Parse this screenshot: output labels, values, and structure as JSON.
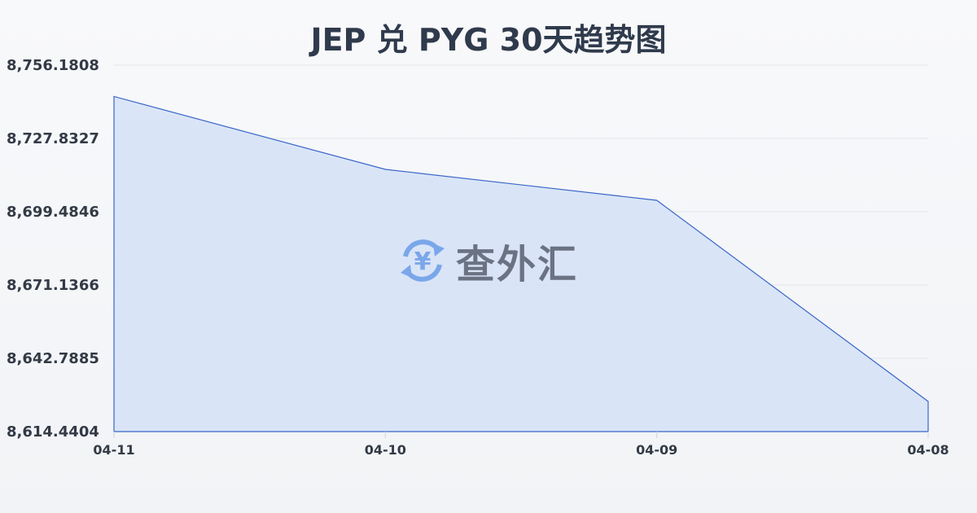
{
  "chart_data": {
    "type": "area",
    "title": "JEP 兑 PYG 30天趋势图",
    "xlabel": "",
    "ylabel": "",
    "categories": [
      "04-11",
      "04-10",
      "04-09",
      "04-08"
    ],
    "values": [
      8744.06,
      8715.86,
      8703.89,
      8626.1
    ],
    "ylim": [
      8614.4404,
      8756.1808
    ],
    "yticks": [
      "8,756.1808",
      "8,727.8327",
      "8,699.4846",
      "8,671.1366",
      "8,642.7885",
      "8,614.4404"
    ],
    "grid": true,
    "colors": {
      "line": "#3a66c8",
      "fill": "#d6e2f6"
    }
  },
  "watermark": {
    "text": "查外汇",
    "icon": "yen-exchange-icon",
    "color": "#7aa7ea"
  }
}
